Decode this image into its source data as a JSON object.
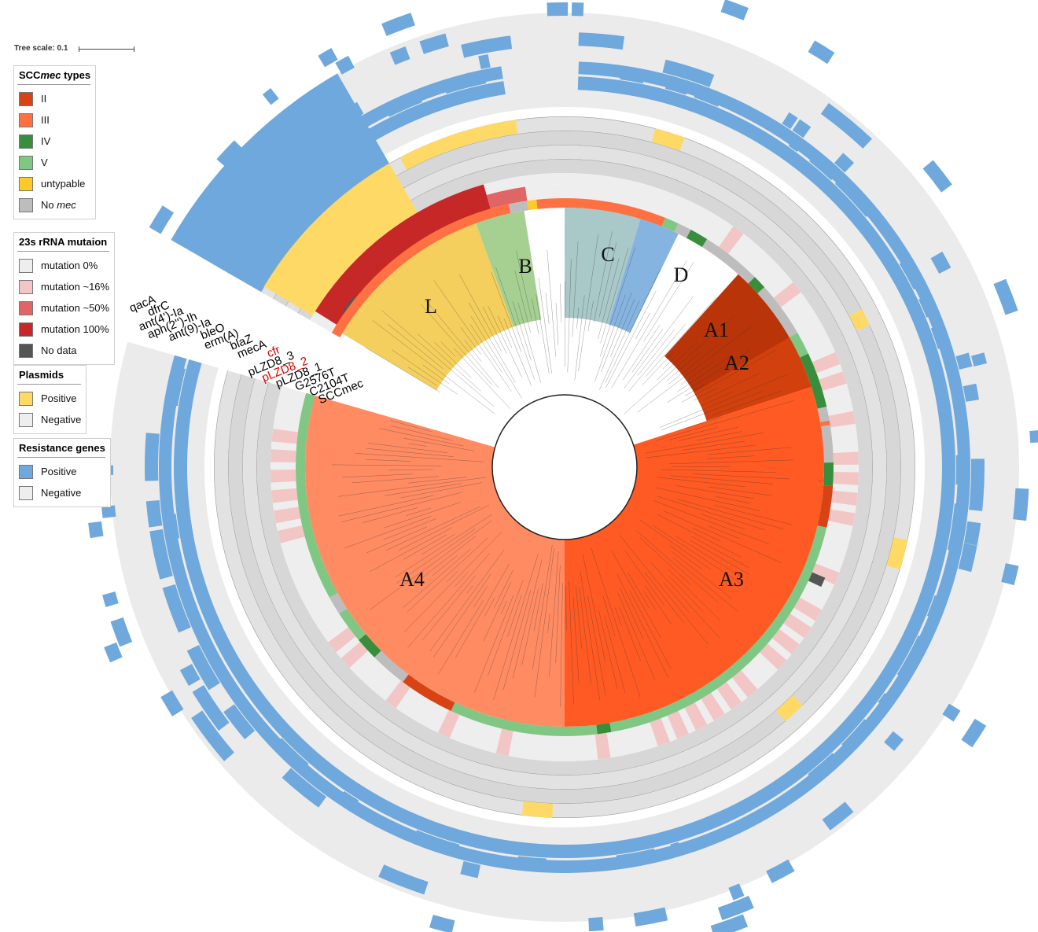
{
  "tree_scale": {
    "label": "Tree scale: 0.1"
  },
  "legends": [
    {
      "id": "sccmec",
      "title_parts": [
        "SCC",
        "mec",
        " types"
      ],
      "items": [
        {
          "label": "II",
          "color": "#d84315"
        },
        {
          "label": "III",
          "color": "#ff7043"
        },
        {
          "label": "IV",
          "color": "#388e3c"
        },
        {
          "label": "V",
          "color": "#81c784"
        },
        {
          "label": "untypable",
          "color": "#ffca28"
        },
        {
          "label_parts": [
            "No ",
            "mec"
          ],
          "color": "#bdbdbd"
        }
      ]
    },
    {
      "id": "rrna",
      "title_parts": [
        "23s rRNA mutaion"
      ],
      "items": [
        {
          "label": "mutation 0%",
          "color": "#eeeeee"
        },
        {
          "label": "mutation ~16%",
          "color": "#f3c6c6"
        },
        {
          "label": "mutation ~50%",
          "color": "#e06666"
        },
        {
          "label": "mutation 100%",
          "color": "#c62828"
        },
        {
          "label": "No data",
          "color": "#555555"
        }
      ]
    },
    {
      "id": "plasmids",
      "title_parts": [
        "Plasmids"
      ],
      "items": [
        {
          "label": "Positive",
          "color": "#ffd966"
        },
        {
          "label": "Negative",
          "color": "#eeeeee"
        }
      ]
    },
    {
      "id": "resistance",
      "title_parts": [
        "Resistance genes"
      ],
      "items": [
        {
          "label": "Positive",
          "color": "#6fa8dc"
        },
        {
          "label": "Negative",
          "color": "#eeeeee"
        }
      ]
    }
  ],
  "ring_labels": [
    {
      "text": "qacA",
      "color": "#000000"
    },
    {
      "text": "dfrC",
      "color": "#000000"
    },
    {
      "text": "ant(4')-Ia",
      "color": "#000000"
    },
    {
      "text": "aph(2'')-Ih",
      "color": "#000000"
    },
    {
      "text": "ant(9)-Ia",
      "color": "#000000"
    },
    {
      "text": "bleO",
      "color": "#000000"
    },
    {
      "text": "erm(A)",
      "color": "#000000"
    },
    {
      "text": "blaZ",
      "color": "#000000"
    },
    {
      "text": "mecA",
      "color": "#000000"
    },
    {
      "text": "cfr",
      "color": "#e00000"
    },
    {
      "text": "pLZD8_3",
      "color": "#000000"
    },
    {
      "text": "pLZD8_2",
      "color": "#e00000"
    },
    {
      "text": "pLZD8_1",
      "color": "#000000"
    },
    {
      "text": "G2576T",
      "color": "#000000"
    },
    {
      "text": "C2104T",
      "color": "#000000"
    },
    {
      "text": "SCCmec",
      "color": "#000000"
    }
  ],
  "clades": [
    {
      "label": "L",
      "color": "#f4cf5d"
    },
    {
      "label": "B",
      "color": "#a6cf92"
    },
    {
      "label": "C",
      "color": "#a9c8c8"
    },
    {
      "label": "D",
      "color": "#86b4e0"
    },
    {
      "label": "A1",
      "color": "#b93409"
    },
    {
      "label": "A2",
      "color": "#d2410d"
    },
    {
      "label": "A3",
      "color": "#ff5a23"
    },
    {
      "label": "A4",
      "color": "#ff8b63"
    }
  ]
}
